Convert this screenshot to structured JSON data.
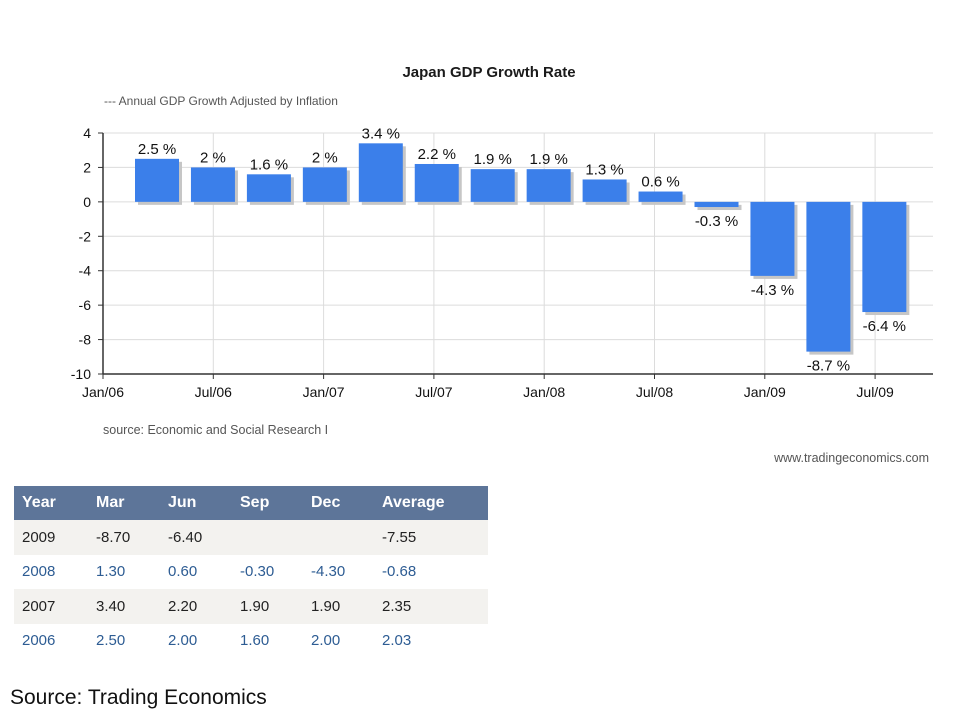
{
  "chart_data": {
    "type": "bar",
    "title": "Japan GDP Growth Rate",
    "subtitle": "---  Annual GDP Growth Adjusted by Inflation",
    "source_text": "source: Economic and Social Research I",
    "website": "www.tradingeconomics.com",
    "categories": [
      "Mar 2006",
      "Jun 2006",
      "Sep 2006",
      "Dec 2006",
      "Mar 2007",
      "Jun 2007",
      "Sep 2007",
      "Dec 2007",
      "Mar 2008",
      "Jun 2008",
      "Sep 2008",
      "Dec 2008",
      "Mar 2009",
      "Jun 2009"
    ],
    "values": [
      2.5,
      2.0,
      1.6,
      2.0,
      3.4,
      2.2,
      1.9,
      1.9,
      1.3,
      0.6,
      -0.3,
      -4.3,
      -8.7,
      -6.4
    ],
    "data_labels": [
      "2.5 %",
      "2 %",
      "1.6 %",
      "2 %",
      "3.4 %",
      "2.2 %",
      "1.9 %",
      "1.9 %",
      "1.3 %",
      "0.6 %",
      "-0.3 %",
      "-4.3 %",
      "-8.7 %",
      "-6.4 %"
    ],
    "ylim": [
      -10,
      4
    ],
    "yticks": [
      4,
      2,
      0,
      -2,
      -4,
      -6,
      -8,
      -10
    ],
    "xticks": [
      "Jan/06",
      "Jul/06",
      "Jan/07",
      "Jul/07",
      "Jan/08",
      "Jul/08",
      "Jan/09",
      "Jul/09"
    ],
    "xlabel": "",
    "ylabel": "",
    "grid": true,
    "colors": {
      "bar": "#3b7fea",
      "bar_highlight": "#1a6fe3",
      "shadow": "#c6c6c6",
      "grid": "#dcdcdc"
    }
  },
  "table": {
    "headers": [
      "Year",
      "Mar",
      "Jun",
      "Sep",
      "Dec",
      "Average"
    ],
    "rows": [
      [
        "2009",
        "-8.70",
        "-6.40",
        "",
        "",
        "-7.55"
      ],
      [
        "2008",
        "1.30",
        "0.60",
        "-0.30",
        "-4.30",
        "-0.68"
      ],
      [
        "2007",
        "3.40",
        "2.20",
        "1.90",
        "1.90",
        "2.35"
      ],
      [
        "2006",
        "2.50",
        "2.00",
        "1.60",
        "2.00",
        "2.03"
      ]
    ]
  },
  "footer": {
    "source": "Source: Trading Economics"
  }
}
